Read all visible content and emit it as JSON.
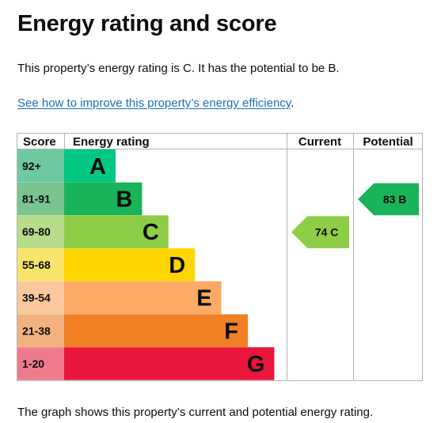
{
  "heading": "Energy rating and score",
  "intro_text": "This property’s energy rating is C. It has the potential to be B.",
  "link": {
    "text": "See how to improve this property’s energy efficiency",
    "suffix": "."
  },
  "footer_text": "The graph shows this property’s current and potential energy rating.",
  "chart_data": {
    "type": "bar",
    "headers": {
      "score": "Score",
      "rating": "Energy rating",
      "current": "Current",
      "potential": "Potential"
    },
    "bands": [
      {
        "band": "A",
        "range": "92+",
        "min_score": 92,
        "color": "#00c781",
        "score_color": "#6ec9a0"
      },
      {
        "band": "B",
        "range": "81-91",
        "min_score": 81,
        "color": "#19b459",
        "score_color": "#7ac48f"
      },
      {
        "band": "C",
        "range": "69-80",
        "min_score": 69,
        "color": "#8dce46",
        "score_color": "#b7dc8c"
      },
      {
        "band": "D",
        "range": "55-68",
        "min_score": 55,
        "color": "#ffd500",
        "score_color": "#f8e36b"
      },
      {
        "band": "E",
        "range": "39-54",
        "min_score": 39,
        "color": "#fcaa65",
        "score_color": "#f9c89d"
      },
      {
        "band": "F",
        "range": "21-38",
        "min_score": 21,
        "color": "#ef8023",
        "score_color": "#f2b17f"
      },
      {
        "band": "G",
        "range": "1-20",
        "min_score": 1,
        "color": "#e9153b",
        "score_color": "#ef7a8c"
      }
    ],
    "current": {
      "score": 74,
      "band": "C",
      "color": "#8dce46"
    },
    "potential": {
      "score": 83,
      "band": "B",
      "color": "#19b459"
    }
  }
}
